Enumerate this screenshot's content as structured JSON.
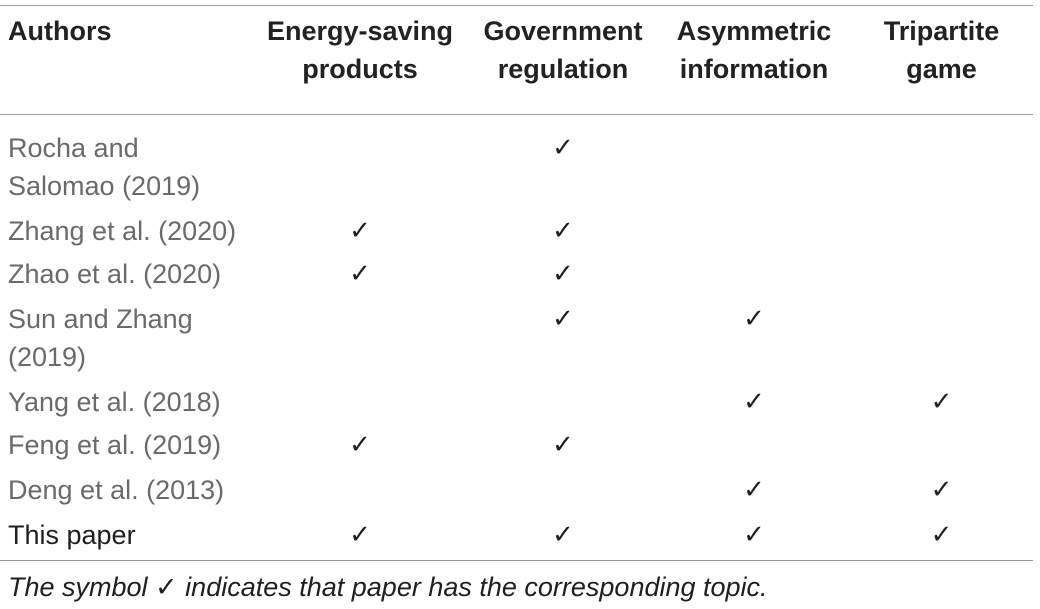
{
  "table": {
    "headers": [
      "Authors",
      "Energy-saving products",
      "Government regulation",
      "Asymmetric information",
      "Tripartite game"
    ],
    "check_symbol": "✓",
    "rows": [
      {
        "author": "Rocha and Salomao (2019)",
        "marks": [
          false,
          true,
          false,
          false
        ]
      },
      {
        "author": "Zhang et al. (2020)",
        "marks": [
          true,
          true,
          false,
          false
        ]
      },
      {
        "author": "Zhao et al. (2020)",
        "marks": [
          true,
          true,
          false,
          false
        ]
      },
      {
        "author": "Sun and Zhang (2019)",
        "marks": [
          false,
          true,
          true,
          false
        ]
      },
      {
        "author": "Yang et al. (2018)",
        "marks": [
          false,
          false,
          true,
          true
        ]
      },
      {
        "author": "Feng et al. (2019)",
        "marks": [
          true,
          true,
          false,
          false
        ]
      },
      {
        "author": "Deng et al. (2013)",
        "marks": [
          false,
          false,
          true,
          true
        ]
      },
      {
        "author": "This paper",
        "marks": [
          true,
          true,
          true,
          true
        ]
      }
    ]
  },
  "footnote": "The symbol ✓ indicates that paper has the corresponding topic."
}
